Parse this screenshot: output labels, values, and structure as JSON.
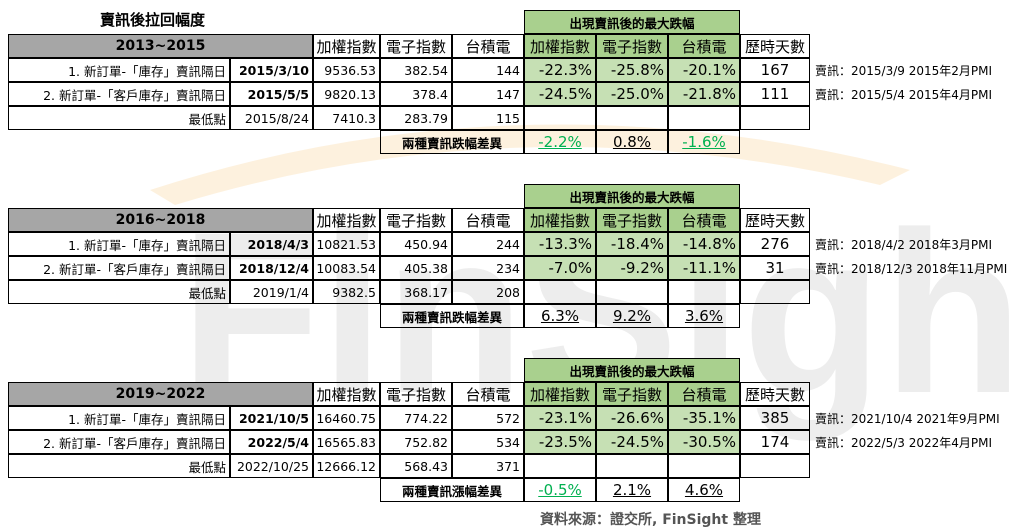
{
  "title": "賣訊後拉回幅度",
  "max_drop_header": "出現賣訊後的最大跌幅",
  "col_headers": [
    "加權指數",
    "電子指數",
    "台積電",
    "加權指數",
    "電子指數",
    "台積電",
    "歷時天數"
  ],
  "source": "資料來源：證交所, FinSight 整理",
  "watermark": "FinSight",
  "blocks": [
    {
      "period": "2013~2015",
      "rows": [
        {
          "label": "1. 新訂單-「庫存」賣訊隔日",
          "date": "2015/3/10",
          "taiex": "9536.53",
          "elec": "382.54",
          "tsmc": "144",
          "d1": "-22.3%",
          "d2": "-25.8%",
          "d3": "-20.1%",
          "days": "167",
          "note": "賣訊：2015/3/9 2015年2月PMI"
        },
        {
          "label": "2. 新訂單-「客戶庫存」賣訊隔日",
          "date": "2015/5/5",
          "taiex": "9820.13",
          "elec": "378.4",
          "tsmc": "147",
          "d1": "-24.5%",
          "d2": "-25.0%",
          "d3": "-21.8%",
          "days": "111",
          "note": "賣訊：2015/5/4 2015年4月PMI"
        },
        {
          "label": "最低點",
          "date": "2015/8/24",
          "taiex": "7410.3",
          "elec": "283.79",
          "tsmc": "115"
        }
      ],
      "diff_label": "兩種賣訊跌幅差異",
      "diff": [
        "-2.2%",
        "0.8%",
        "-1.6%"
      ]
    },
    {
      "period": "2016~2018",
      "rows": [
        {
          "label": "1. 新訂單-「庫存」賣訊隔日",
          "date": "2018/4/3",
          "taiex": "10821.53",
          "elec": "450.94",
          "tsmc": "244",
          "d1": "-13.3%",
          "d2": "-18.4%",
          "d3": "-14.8%",
          "days": "276",
          "note": "賣訊：2018/4/2 2018年3月PMI"
        },
        {
          "label": "2. 新訂單-「客戶庫存」賣訊隔日",
          "date": "2018/12/4",
          "taiex": "10083.54",
          "elec": "405.38",
          "tsmc": "234",
          "d1": "-7.0%",
          "d2": "-9.2%",
          "d3": "-11.1%",
          "days": "31",
          "note": "賣訊：2018/12/3 2018年11月PMI"
        },
        {
          "label": "最低點",
          "date": "2019/1/4",
          "taiex": "9382.5",
          "elec": "368.17",
          "tsmc": "208"
        }
      ],
      "diff_label": "兩種賣訊跌幅差異",
      "diff": [
        "6.3%",
        "9.2%",
        "3.6%"
      ]
    },
    {
      "period": "2019~2022",
      "rows": [
        {
          "label": "1. 新訂單-「庫存」賣訊隔日",
          "date": "2021/10/5",
          "taiex": "16460.75",
          "elec": "774.22",
          "tsmc": "572",
          "d1": "-23.1%",
          "d2": "-26.6%",
          "d3": "-35.1%",
          "days": "385",
          "note": "賣訊：2021/10/4 2021年9月PMI"
        },
        {
          "label": "2. 新訂單-「客戶庫存」賣訊隔日",
          "date": "2022/5/4",
          "taiex": "16565.83",
          "elec": "752.82",
          "tsmc": "534",
          "d1": "-23.5%",
          "d2": "-24.5%",
          "d3": "-30.5%",
          "days": "174",
          "note": "賣訊：2022/5/3 2022年4月PMI"
        },
        {
          "label": "最低點",
          "date": "2022/10/25",
          "taiex": "12666.12",
          "elec": "568.43",
          "tsmc": "371"
        }
      ],
      "diff_label": "兩種賣訊漲幅差異",
      "diff": [
        "-0.5%",
        "2.1%",
        "4.6%"
      ]
    }
  ]
}
